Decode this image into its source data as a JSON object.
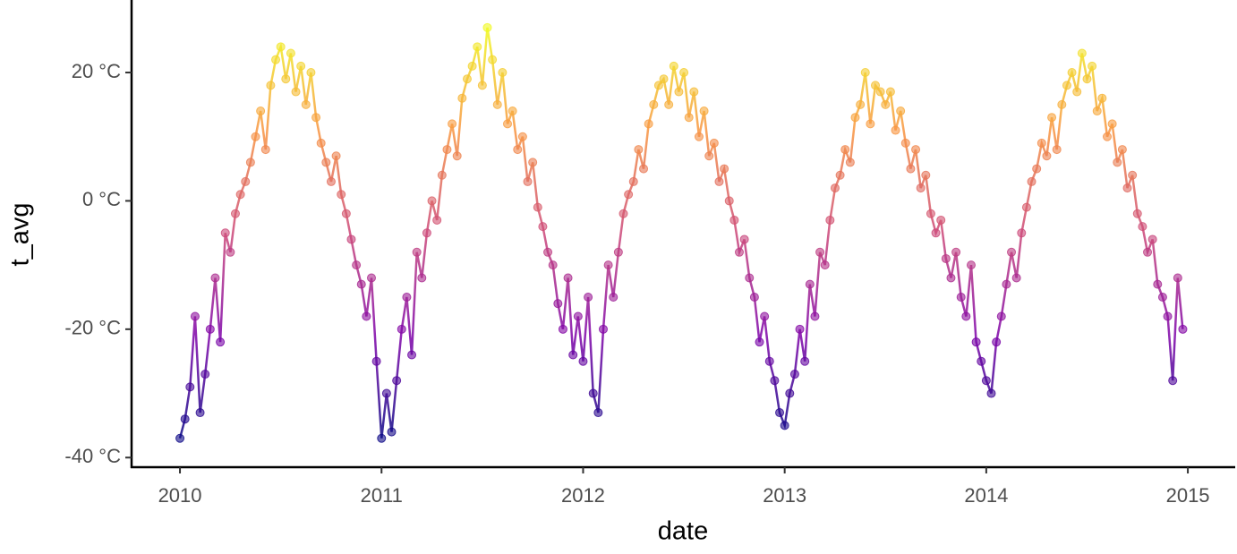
{
  "chart_data": {
    "type": "line",
    "x_label": "date",
    "y_label": "t_avg",
    "x": [
      2010,
      2010.025,
      2010.05,
      2010.075,
      2010.1,
      2010.125,
      2010.15,
      2010.175,
      2010.2,
      2010.225,
      2010.25,
      2010.275,
      2010.3,
      2010.325,
      2010.35,
      2010.375,
      2010.4,
      2010.425,
      2010.45,
      2010.475,
      2010.5,
      2010.525,
      2010.55,
      2010.575,
      2010.6,
      2010.625,
      2010.65,
      2010.675,
      2010.7,
      2010.725,
      2010.75,
      2010.775,
      2010.8,
      2010.825,
      2010.85,
      2010.875,
      2010.9,
      2010.925,
      2010.95,
      2010.975,
      2011,
      2011.025,
      2011.05,
      2011.075,
      2011.1,
      2011.125,
      2011.15,
      2011.175,
      2011.2,
      2011.225,
      2011.25,
      2011.275,
      2011.3,
      2011.325,
      2011.35,
      2011.375,
      2011.4,
      2011.425,
      2011.45,
      2011.475,
      2011.5,
      2011.525,
      2011.55,
      2011.575,
      2011.6,
      2011.625,
      2011.65,
      2011.675,
      2011.7,
      2011.725,
      2011.75,
      2011.775,
      2011.8,
      2011.825,
      2011.85,
      2011.875,
      2011.9,
      2011.925,
      2011.95,
      2011.975,
      2012,
      2012.025,
      2012.05,
      2012.075,
      2012.1,
      2012.125,
      2012.15,
      2012.175,
      2012.2,
      2012.225,
      2012.25,
      2012.275,
      2012.3,
      2012.325,
      2012.35,
      2012.375,
      2012.4,
      2012.425,
      2012.45,
      2012.475,
      2012.5,
      2012.525,
      2012.55,
      2012.575,
      2012.6,
      2012.625,
      2012.65,
      2012.675,
      2012.7,
      2012.725,
      2012.75,
      2012.775,
      2012.8,
      2012.825,
      2012.85,
      2012.875,
      2012.9,
      2012.925,
      2012.95,
      2012.975,
      2013,
      2013.025,
      2013.05,
      2013.075,
      2013.1,
      2013.125,
      2013.15,
      2013.175,
      2013.2,
      2013.225,
      2013.25,
      2013.275,
      2013.3,
      2013.325,
      2013.35,
      2013.375,
      2013.4,
      2013.425,
      2013.45,
      2013.475,
      2013.5,
      2013.525,
      2013.55,
      2013.575,
      2013.6,
      2013.625,
      2013.65,
      2013.675,
      2013.7,
      2013.725,
      2013.75,
      2013.775,
      2013.8,
      2013.825,
      2013.85,
      2013.875,
      2013.9,
      2013.925,
      2013.95,
      2013.975,
      2014,
      2014.025,
      2014.05,
      2014.075,
      2014.1,
      2014.125,
      2014.15,
      2014.175,
      2014.2,
      2014.225,
      2014.25,
      2014.275,
      2014.3,
      2014.325,
      2014.35,
      2014.375,
      2014.4,
      2014.425,
      2014.45,
      2014.475,
      2014.5,
      2014.525,
      2014.55,
      2014.575,
      2014.6,
      2014.625,
      2014.65,
      2014.675,
      2014.7,
      2014.725,
      2014.75,
      2014.775,
      2014.8,
      2014.825,
      2014.85,
      2014.875,
      2014.9,
      2014.925,
      2014.95,
      2014.975
    ],
    "series": [
      {
        "values": [
          -37,
          -34,
          -29,
          -18,
          -33,
          -27,
          -20,
          -12,
          -22,
          -5,
          -8,
          -2,
          1,
          3,
          6,
          10,
          14,
          8,
          18,
          22,
          24,
          19,
          23,
          17,
          21,
          15,
          20,
          13,
          9,
          6,
          3,
          7,
          1,
          -2,
          -6,
          -10,
          -13,
          -18,
          -12,
          -25,
          -37,
          -30,
          -36,
          -28,
          -20,
          -15,
          -24,
          -8,
          -12,
          -5,
          0,
          -3,
          4,
          8,
          12,
          7,
          16,
          19,
          21,
          24,
          18,
          27,
          22,
          15,
          20,
          12,
          14,
          8,
          10,
          3,
          6,
          -1,
          -4,
          -8,
          -10,
          -16,
          -20,
          -12,
          -24,
          -18,
          -25,
          -15,
          -30,
          -33,
          -20,
          -10,
          -15,
          -8,
          -2,
          1,
          3,
          8,
          5,
          12,
          15,
          18,
          19,
          15,
          21,
          17,
          20,
          13,
          17,
          10,
          14,
          7,
          9,
          3,
          5,
          0,
          -3,
          -8,
          -6,
          -12,
          -15,
          -22,
          -18,
          -25,
          -28,
          -33,
          -35,
          -30,
          -27,
          -20,
          -25,
          -13,
          -18,
          -8,
          -10,
          -3,
          2,
          4,
          8,
          6,
          13,
          15,
          20,
          12,
          18,
          17,
          15,
          17,
          11,
          14,
          9,
          5,
          8,
          2,
          4,
          -2,
          -5,
          -3,
          -9,
          -12,
          -8,
          -15,
          -18,
          -10,
          -22,
          -25,
          -28,
          -30,
          -22,
          -18,
          -13,
          -8,
          -12,
          -5,
          -1,
          3,
          5,
          9,
          7,
          13,
          8,
          15,
          18,
          20,
          17,
          23,
          19,
          21,
          14,
          16,
          10,
          12,
          6,
          8,
          2,
          4,
          -2,
          -4,
          -8,
          -6,
          -13,
          -15,
          -18,
          -28,
          -12,
          -20
        ]
      }
    ],
    "color_scale": [
      "#0d0887",
      "#7e03a8",
      "#cc4778",
      "#f89540",
      "#f0f921"
    ],
    "xlim": [
      2009.76,
      2015.235
    ],
    "xticks": [
      2010,
      2011,
      2012,
      2013,
      2014,
      2015
    ],
    "ylim": [
      -41.5,
      31.3
    ],
    "yticks": [
      {
        "value": -40,
        "label": "-40 °C"
      },
      {
        "value": -20,
        "label": "-20 °C"
      },
      {
        "value": 0,
        "label": "0 °C"
      },
      {
        "value": 20,
        "label": "20 °C"
      }
    ]
  }
}
